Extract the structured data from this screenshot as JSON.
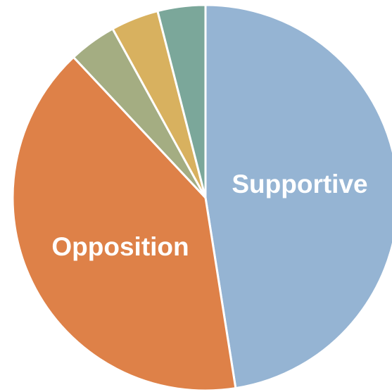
{
  "chart_data": {
    "type": "pie",
    "title": "",
    "slices": [
      {
        "label": "Supportive",
        "value": 47.5,
        "color": "#95B4D3",
        "show_label": true
      },
      {
        "label": "Opposition",
        "value": 40.5,
        "color": "#DE8148",
        "show_label": true
      },
      {
        "label": "",
        "value": 4.0,
        "color": "#A4AD82",
        "show_label": false
      },
      {
        "label": "",
        "value": 4.0,
        "color": "#D8B15F",
        "show_label": false
      },
      {
        "label": "",
        "value": 4.0,
        "color": "#7BA79A",
        "show_label": false
      }
    ],
    "start_angle_deg": 0,
    "direction": "clockwise",
    "legend": "none"
  }
}
